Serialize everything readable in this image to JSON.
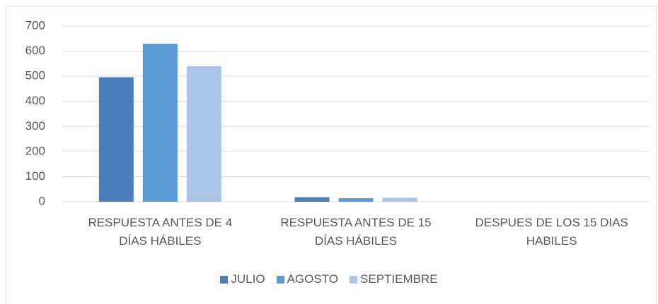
{
  "chart_data": {
    "type": "bar",
    "categories": [
      "RESPUESTA ANTES DE 4 DÍAS HÁBILES",
      "RESPUESTA ANTES DE 15 DÍAS HÁBILES",
      "DESPUES DE LOS 15 DIAS HABILES"
    ],
    "series": [
      {
        "name": "JULIO",
        "color": "#4a7ebb",
        "values": [
          496,
          18,
          0
        ]
      },
      {
        "name": "AGOSTO",
        "color": "#5b9bd5",
        "values": [
          630,
          14,
          0
        ]
      },
      {
        "name": "SEPTIEMBRE",
        "color": "#a9c4e6",
        "values": [
          540,
          16,
          0
        ]
      }
    ],
    "ylim": [
      0,
      700
    ],
    "yticks": [
      0,
      100,
      200,
      300,
      400,
      500,
      600,
      700
    ],
    "grid": true,
    "legend": "bottom"
  }
}
